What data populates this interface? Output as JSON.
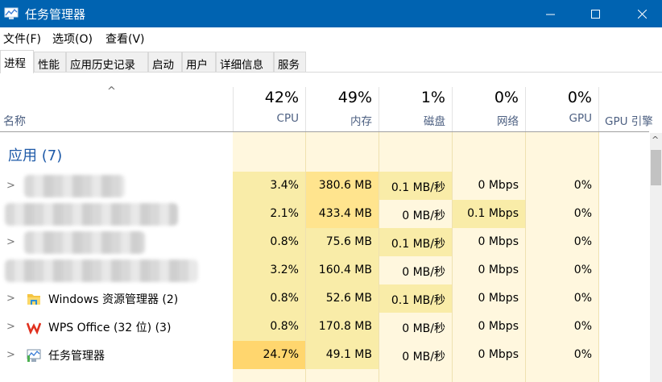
{
  "window": {
    "title": "任务管理器"
  },
  "menu": [
    "文件(F)",
    "选项(O)",
    "查看(V)"
  ],
  "tabs": [
    "进程",
    "性能",
    "应用历史记录",
    "启动",
    "用户",
    "详细信息",
    "服务"
  ],
  "header": {
    "name": "名称",
    "columns": [
      {
        "pct": "42%",
        "label": "CPU"
      },
      {
        "pct": "49%",
        "label": "内存"
      },
      {
        "pct": "1%",
        "label": "磁盘"
      },
      {
        "pct": "0%",
        "label": "网络"
      },
      {
        "pct": "0%",
        "label": "GPU"
      },
      {
        "pct": "",
        "label": "GPU 引擎"
      }
    ]
  },
  "group": {
    "label": "应用 (7)"
  },
  "heat_colors": {
    "0": "#fff7de",
    "1": "#f9eca8",
    "2": "#ffe48e",
    "3": "#ffd66e"
  },
  "rows": [
    {
      "name": "",
      "blurred": true,
      "cpu": "3.4%",
      "mem": "380.6 MB",
      "disk": "0.1 MB/秒",
      "net": "0 Mbps",
      "gpu": "0%",
      "levels": [
        1,
        2,
        1,
        0,
        0
      ]
    },
    {
      "name": "",
      "blurred": true,
      "cpu": "2.1%",
      "mem": "433.4 MB",
      "disk": "0 MB/秒",
      "net": "0.1 Mbps",
      "gpu": "0%",
      "levels": [
        1,
        2,
        0,
        1,
        0
      ]
    },
    {
      "name": "",
      "blurred": true,
      "cpu": "0.8%",
      "mem": "75.6 MB",
      "disk": "0.1 MB/秒",
      "net": "0 Mbps",
      "gpu": "0%",
      "levels": [
        1,
        1,
        1,
        0,
        0
      ]
    },
    {
      "name": "",
      "blurred": true,
      "cpu": "3.2%",
      "mem": "160.4 MB",
      "disk": "0 MB/秒",
      "net": "0 Mbps",
      "gpu": "0%",
      "levels": [
        1,
        1,
        0,
        0,
        0
      ]
    },
    {
      "name": "Windows 资源管理器 (2)",
      "icon": "folder-icon",
      "cpu": "0.8%",
      "mem": "52.6 MB",
      "disk": "0.1 MB/秒",
      "net": "0 Mbps",
      "gpu": "0%",
      "levels": [
        1,
        1,
        1,
        0,
        0
      ]
    },
    {
      "name": "WPS Office (32 位) (3)",
      "icon": "wps-icon",
      "cpu": "0.8%",
      "mem": "170.8 MB",
      "disk": "0 MB/秒",
      "net": "0 Mbps",
      "gpu": "0%",
      "levels": [
        1,
        1,
        0,
        0,
        0
      ]
    },
    {
      "name": "任务管理器",
      "icon": "task-manager-icon",
      "cpu": "24.7%",
      "mem": "49.1 MB",
      "disk": "0 MB/秒",
      "net": "0 Mbps",
      "gpu": "0%",
      "levels": [
        3,
        1,
        0,
        0,
        0
      ]
    }
  ]
}
